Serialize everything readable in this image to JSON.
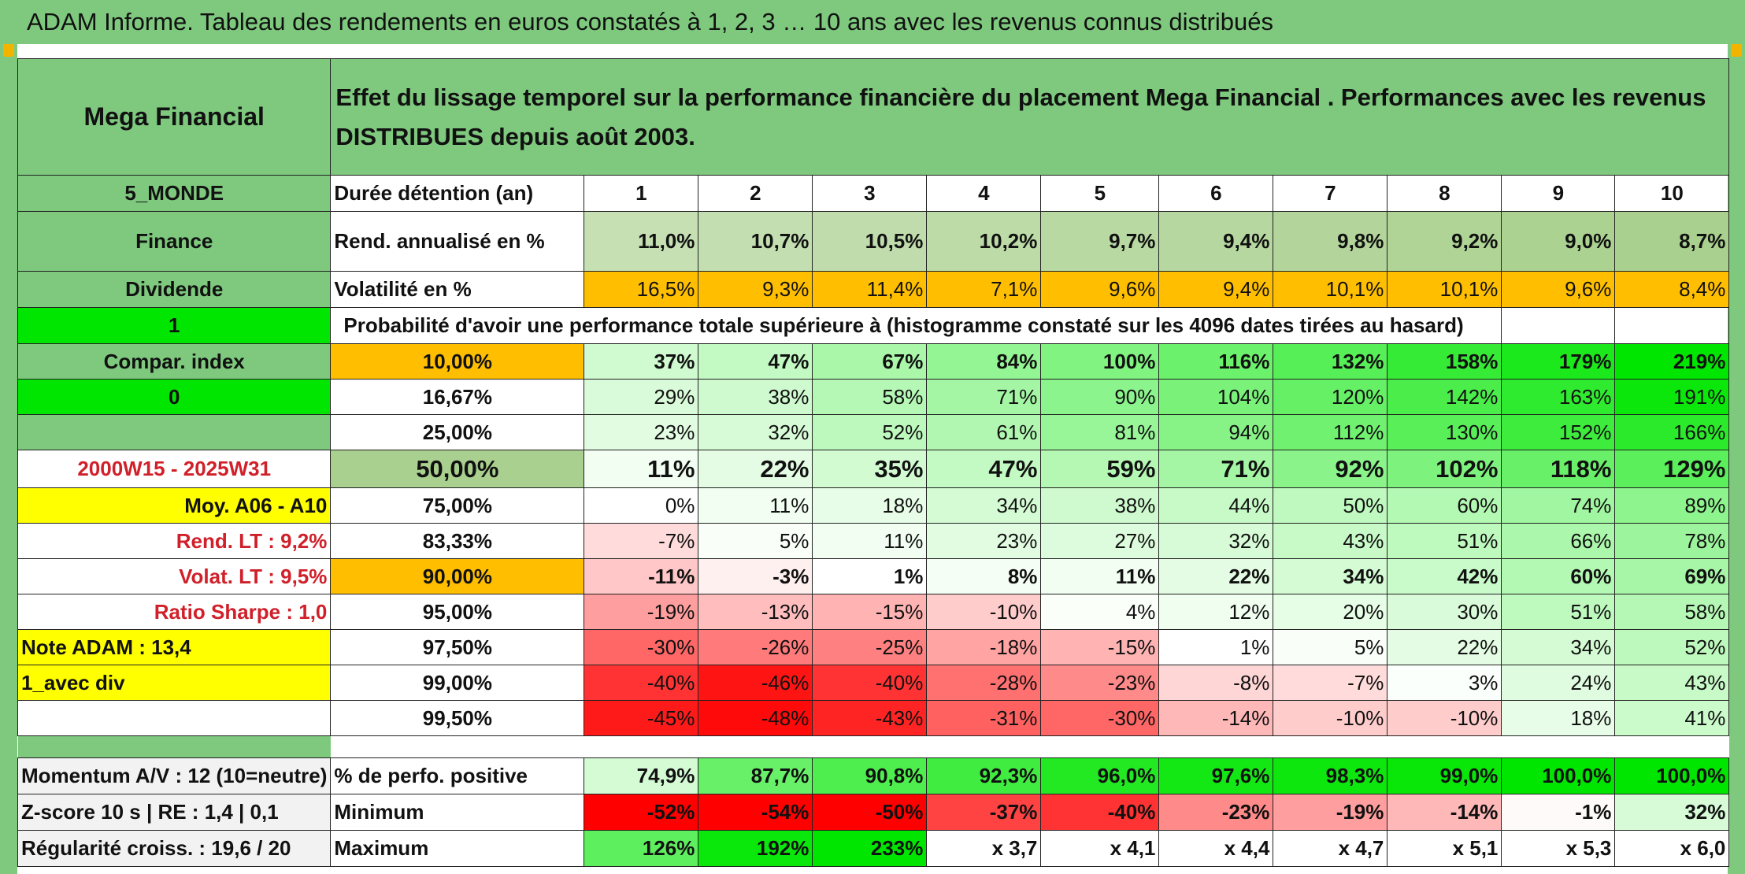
{
  "title": "ADAM Informe. Tableau des rendements en euros constatés à 1, 2, 3 … 10 ans avec les revenus connus distribués",
  "fund_name": "Mega Financial",
  "description": "Effet du lissage temporel sur la performance financière du placement Mega Financial . Performances avec les revenus DISTRIBUES depuis août 2003.",
  "side": {
    "category": "5_MONDE",
    "sector": "Finance",
    "income": "Dividende",
    "flag1": "1",
    "compar_index": "Compar. index",
    "flag0": "0",
    "period": "2000W15 - 2025W31",
    "moy": "Moy. A06 - A10",
    "rend_lt": "Rend. LT :   9,2%",
    "volat_lt": "Volat. LT :   9,5%",
    "sharpe": "Ratio Sharpe :    1,0",
    "note": "Note ADAM : 13,4",
    "div": "1_avec div"
  },
  "labels": {
    "duration": "Durée détention (an)",
    "rend": "Rend. annualisé en %",
    "vol": "Volatilité en %",
    "prob": "Probabilité d'avoir une performance totale supérieure à (histogramme constaté sur les 4096 dates tirées au hasard)",
    "pos": "% de perfo. positive",
    "min": "Minimum",
    "max": "Maximum",
    "momentum": "Momentum A/V : 12 (10=neutre)",
    "zscore": "Z-score 10 s | RE : 1,4 | 0,1",
    "regularite": "Régularité croiss. : 19,6 / 20"
  },
  "years": [
    "1",
    "2",
    "3",
    "4",
    "5",
    "6",
    "7",
    "8",
    "9",
    "10"
  ],
  "rend": [
    "11,0%",
    "10,7%",
    "10,5%",
    "10,2%",
    "9,7%",
    "9,4%",
    "9,8%",
    "9,2%",
    "9,0%",
    "8,7%"
  ],
  "vol": [
    "16,5%",
    "9,3%",
    "11,4%",
    "7,1%",
    "9,6%",
    "9,4%",
    "10,1%",
    "10,1%",
    "9,6%",
    "8,4%"
  ],
  "prob_rows": [
    {
      "pct": "10,00%",
      "vals": [
        "37%",
        "47%",
        "67%",
        "84%",
        "100%",
        "116%",
        "132%",
        "158%",
        "179%",
        "219%"
      ]
    },
    {
      "pct": "16,67%",
      "vals": [
        "29%",
        "38%",
        "58%",
        "71%",
        "90%",
        "104%",
        "120%",
        "142%",
        "163%",
        "191%"
      ]
    },
    {
      "pct": "25,00%",
      "vals": [
        "23%",
        "32%",
        "52%",
        "61%",
        "81%",
        "94%",
        "112%",
        "130%",
        "152%",
        "166%"
      ]
    },
    {
      "pct": "50,00%",
      "vals": [
        "11%",
        "22%",
        "35%",
        "47%",
        "59%",
        "71%",
        "92%",
        "102%",
        "118%",
        "129%"
      ]
    },
    {
      "pct": "75,00%",
      "vals": [
        "0%",
        "11%",
        "18%",
        "34%",
        "38%",
        "44%",
        "50%",
        "60%",
        "74%",
        "89%"
      ]
    },
    {
      "pct": "83,33%",
      "vals": [
        "-7%",
        "5%",
        "11%",
        "23%",
        "27%",
        "32%",
        "43%",
        "51%",
        "66%",
        "78%"
      ]
    },
    {
      "pct": "90,00%",
      "vals": [
        "-11%",
        "-3%",
        "1%",
        "8%",
        "11%",
        "22%",
        "34%",
        "42%",
        "60%",
        "69%"
      ]
    },
    {
      "pct": "95,00%",
      "vals": [
        "-19%",
        "-13%",
        "-15%",
        "-10%",
        "4%",
        "12%",
        "20%",
        "30%",
        "51%",
        "58%"
      ]
    },
    {
      "pct": "97,50%",
      "vals": [
        "-30%",
        "-26%",
        "-25%",
        "-18%",
        "-15%",
        "1%",
        "5%",
        "22%",
        "34%",
        "52%"
      ]
    },
    {
      "pct": "99,00%",
      "vals": [
        "-40%",
        "-46%",
        "-40%",
        "-28%",
        "-23%",
        "-8%",
        "-7%",
        "3%",
        "24%",
        "43%"
      ]
    },
    {
      "pct": "99,50%",
      "vals": [
        "-45%",
        "-48%",
        "-43%",
        "-31%",
        "-30%",
        "-14%",
        "-10%",
        "-10%",
        "18%",
        "41%"
      ]
    }
  ],
  "pos": [
    "74,9%",
    "87,7%",
    "90,8%",
    "92,3%",
    "96,0%",
    "97,6%",
    "98,3%",
    "99,0%",
    "100,0%",
    "100,0%"
  ],
  "min": [
    "-52%",
    "-54%",
    "-50%",
    "-37%",
    "-40%",
    "-23%",
    "-19%",
    "-14%",
    "-1%",
    "32%"
  ],
  "max": [
    "126%",
    "192%",
    "233%",
    "x 3,7",
    "x 4,1",
    "x 4,4",
    "x 4,7",
    "x 5,1",
    "x 5,3",
    "x 6,0"
  ],
  "colors": {
    "header_green": "#7ec97e",
    "bright_green": "#00e600",
    "yellow": "#ffff00",
    "orange": "#ffbf00",
    "red_text": "#d0202a",
    "rend_fill": "#c6e0b4"
  }
}
